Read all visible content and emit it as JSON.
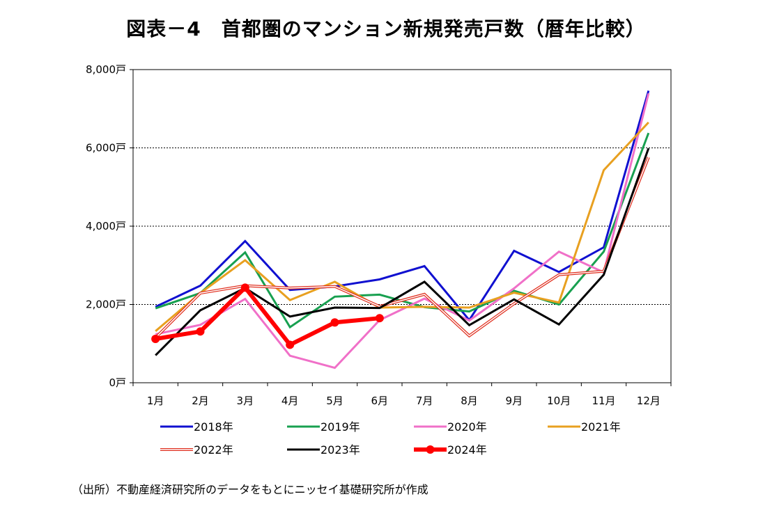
{
  "title": "図表－4　首都圏のマンション新規発売戸数（暦年比較）",
  "source": "（出所）不動産経済研究所のデータをもとにニッセイ基礎研究所が作成",
  "chart_data": {
    "type": "line",
    "title": "図表－4　首都圏のマンション新規発売戸数（暦年比較）",
    "xlabel": "",
    "ylabel": "",
    "categories": [
      "1月",
      "2月",
      "3月",
      "4月",
      "5月",
      "6月",
      "7月",
      "8月",
      "9月",
      "10月",
      "11月",
      "12月"
    ],
    "y_ticks": [
      0,
      2000,
      4000,
      6000,
      8000
    ],
    "y_tick_labels": [
      "0戸",
      "2,000戸",
      "4,000戸",
      "6,000戸",
      "8,000戸"
    ],
    "ylim": [
      0,
      8000
    ],
    "grid": "horizontal dotted",
    "legend": "bottom",
    "series": [
      {
        "name": "2018年",
        "color": "#1010d0",
        "style": "solid",
        "values": [
          1940,
          2480,
          3620,
          2370,
          2460,
          2640,
          2980,
          1600,
          3370,
          2830,
          3460,
          7460
        ]
      },
      {
        "name": "2019年",
        "color": "#18a050",
        "style": "solid",
        "values": [
          1900,
          2290,
          3330,
          1420,
          2200,
          2250,
          1930,
          1820,
          2350,
          2000,
          3350,
          6380
        ]
      },
      {
        "name": "2020年",
        "color": "#f070c8",
        "style": "solid",
        "values": [
          1240,
          1480,
          2140,
          690,
          380,
          1600,
          2150,
          1590,
          2410,
          3350,
          2820,
          7390
        ]
      },
      {
        "name": "2021年",
        "color": "#e8a020",
        "style": "solid",
        "values": [
          1320,
          2290,
          3130,
          2110,
          2580,
          1920,
          1940,
          1920,
          2300,
          2050,
          5430,
          6650
        ]
      },
      {
        "name": "2022年",
        "color": "#e03020",
        "style": "double",
        "values": [
          1150,
          2290,
          2480,
          2420,
          2460,
          1950,
          2260,
          1200,
          2020,
          2760,
          2850,
          5760
        ]
      },
      {
        "name": "2023年",
        "color": "#000000",
        "style": "solid",
        "values": [
          700,
          1850,
          2420,
          1690,
          1920,
          1910,
          2580,
          1470,
          2130,
          1490,
          2760,
          5990
        ]
      },
      {
        "name": "2024年",
        "color": "#ff0000",
        "style": "bold-markers",
        "values": [
          1120,
          1310,
          2430,
          970,
          1540,
          1650,
          null,
          null,
          null,
          null,
          null,
          null
        ]
      }
    ]
  }
}
